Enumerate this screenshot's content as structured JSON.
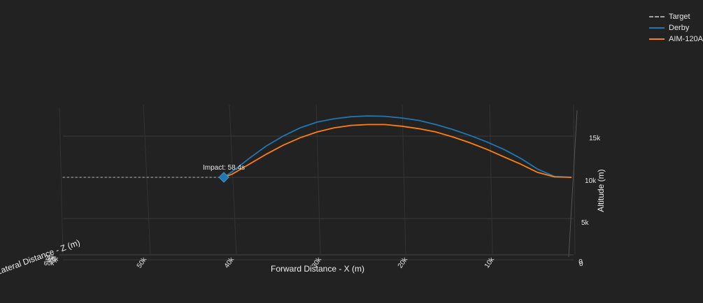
{
  "chart_data": {
    "type": "line",
    "xlabel": "Forward Distance - X (m)",
    "ylabel": "Lateral Distance - Z (m)",
    "zlabel": "Altitude (m)",
    "x_ticks": [
      "50k",
      "40k",
      "30k",
      "20k",
      "10k",
      "0"
    ],
    "z_ticks": [
      "15k",
      "10k",
      "5k",
      "0"
    ],
    "lateral_tick_labels": [
      "20k",
      "40k",
      "60k",
      "60k"
    ],
    "series": [
      {
        "name": "Target",
        "style": "dashed",
        "color": "#a0a0a0",
        "x": [
          60000,
          41000
        ],
        "altitude": [
          10000,
          10000
        ]
      },
      {
        "name": "Derby",
        "color": "#1f77b4",
        "x": [
          0,
          2000,
          4000,
          6000,
          8000,
          10000,
          12000,
          14000,
          16000,
          18000,
          20000,
          22000,
          24000,
          26000,
          28000,
          30000,
          32000,
          34000,
          36000,
          38000,
          40000,
          41000
        ],
        "altitude": [
          10000,
          10100,
          11000,
          12300,
          13400,
          14300,
          15100,
          15800,
          16400,
          16900,
          17200,
          17400,
          17450,
          17350,
          17100,
          16700,
          16000,
          15000,
          13800,
          12300,
          10700,
          10000
        ]
      },
      {
        "name": "AIM-120A",
        "color": "#ff7f0e",
        "x": [
          0,
          2000,
          4000,
          6000,
          8000,
          10000,
          12000,
          14000,
          16000,
          18000,
          20000,
          22000,
          24000,
          26000,
          28000,
          30000,
          32000,
          34000,
          36000,
          38000,
          40000,
          41000
        ],
        "altitude": [
          10000,
          10050,
          10600,
          11600,
          12500,
          13400,
          14200,
          14900,
          15500,
          15900,
          16200,
          16400,
          16400,
          16300,
          16000,
          15500,
          14800,
          13900,
          12800,
          11600,
          10400,
          10000
        ]
      }
    ],
    "annotation": {
      "text": "Impact: 58.4s",
      "x": 41000,
      "altitude": 10000
    },
    "impact_marker": {
      "shape": "diamond",
      "color": "#1f77b4"
    },
    "legend_placement": "top-right",
    "grid": true
  }
}
